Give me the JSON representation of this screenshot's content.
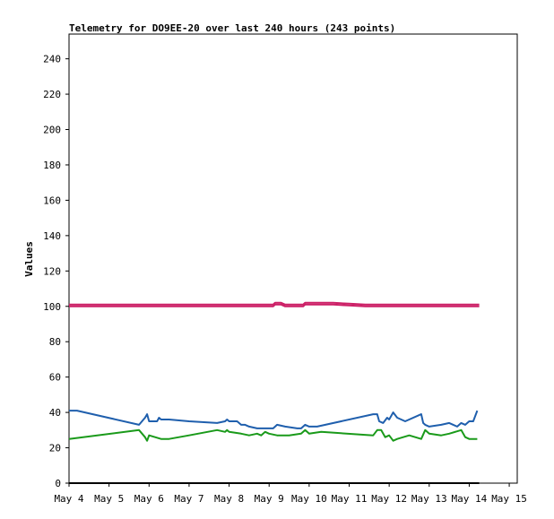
{
  "chart_data": {
    "type": "line",
    "title": "Telemetry for DO9EE-20 over last 240 hours (243 points)",
    "ylabel": "Values",
    "xlabel": "",
    "ylim": [
      0,
      254
    ],
    "xlim": [
      4.0,
      15.2
    ],
    "x_ticks": [
      {
        "x": 4,
        "label": "May 4"
      },
      {
        "x": 5,
        "label": "May 5"
      },
      {
        "x": 6,
        "label": "May 6"
      },
      {
        "x": 7,
        "label": "May 7"
      },
      {
        "x": 8,
        "label": "May 8"
      },
      {
        "x": 9,
        "label": "May 9"
      },
      {
        "x": 10,
        "label": "May 10"
      },
      {
        "x": 11,
        "label": "May 11"
      },
      {
        "x": 12,
        "label": "May 12"
      },
      {
        "x": 13,
        "label": "May 13"
      },
      {
        "x": 14,
        "label": "May 14"
      },
      {
        "x": 15,
        "label": "May 15"
      }
    ],
    "y_ticks": [
      0,
      20,
      40,
      60,
      80,
      100,
      120,
      140,
      160,
      180,
      200,
      220,
      240
    ],
    "grid": false,
    "series": [
      {
        "color": "#1f5fad",
        "x": [
          4.0,
          4.2,
          5.75,
          5.9,
          5.95,
          6.0,
          6.2,
          6.25,
          6.3,
          6.5,
          7.0,
          7.7,
          7.9,
          7.95,
          8.0,
          8.2,
          8.3,
          8.4,
          8.5,
          8.7,
          9.0,
          9.1,
          9.2,
          9.4,
          9.7,
          9.8,
          9.9,
          10.0,
          10.2,
          11.6,
          11.7,
          11.75,
          11.85,
          11.95,
          12.0,
          12.05,
          12.1,
          12.2,
          12.4,
          12.8,
          12.85,
          12.9,
          13.0,
          13.3,
          13.5,
          13.6,
          13.7,
          13.8,
          13.9,
          14.0,
          14.1,
          14.2
        ],
        "values": [
          41,
          41,
          33,
          37,
          39,
          35,
          35,
          37,
          36,
          36,
          35,
          34,
          35,
          36,
          35,
          35,
          33,
          33,
          32,
          31,
          31,
          31,
          33,
          32,
          31,
          31,
          33,
          32,
          32,
          39,
          39,
          35,
          34,
          37,
          36,
          38,
          40,
          37,
          35,
          39,
          34,
          33,
          32,
          33,
          34,
          33,
          32,
          34,
          33,
          35,
          35,
          41
        ]
      },
      {
        "color": "#1a9a1a",
        "x": [
          4.0,
          5.75,
          5.9,
          5.95,
          6.0,
          6.3,
          6.5,
          7.0,
          7.7,
          7.9,
          7.95,
          8.0,
          8.3,
          8.5,
          8.7,
          8.8,
          8.9,
          9.0,
          9.2,
          9.5,
          9.8,
          9.9,
          10.0,
          10.3,
          11.6,
          11.7,
          11.8,
          11.9,
          12.0,
          12.1,
          12.2,
          12.5,
          12.8,
          12.9,
          13.0,
          13.3,
          13.5,
          13.8,
          13.9,
          14.0,
          14.2
        ],
        "values": [
          25,
          30,
          26,
          24,
          27,
          25,
          25,
          27,
          30,
          29,
          30,
          29,
          28,
          27,
          28,
          27,
          29,
          28,
          27,
          27,
          28,
          30,
          28,
          29,
          27,
          30,
          30,
          26,
          27,
          24,
          25,
          27,
          25,
          30,
          28,
          27,
          28,
          30,
          26,
          25,
          25
        ]
      },
      {
        "color": "#cc1f66",
        "x": [
          4.0,
          9.1,
          9.15,
          9.3,
          9.4,
          9.85,
          9.9,
          10.6,
          11.0,
          11.4,
          12.0,
          13.0,
          14.25
        ],
        "values": [
          101,
          101,
          102,
          102,
          101,
          101,
          102,
          102,
          101.5,
          101,
          101,
          101,
          101
        ]
      },
      {
        "color": "#cc1f66",
        "x": [
          4.0,
          9.1,
          9.15,
          9.3,
          9.4,
          9.85,
          9.9,
          10.6,
          11.0,
          11.4,
          12.0,
          13.0,
          14.25
        ],
        "values": [
          100,
          100,
          101,
          101,
          100,
          100,
          101,
          101,
          100.5,
          100,
          100,
          100,
          100
        ]
      },
      {
        "color": "#000000",
        "x": [
          4.0,
          14.25
        ],
        "values": [
          0,
          0
        ]
      }
    ]
  }
}
